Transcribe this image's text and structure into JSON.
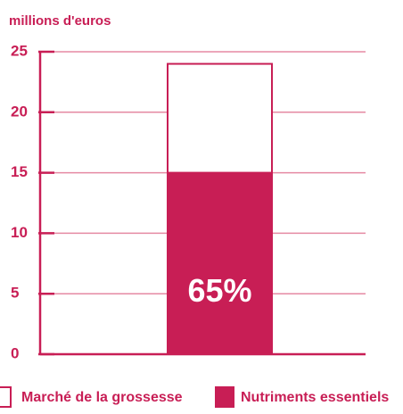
{
  "chart_data": {
    "type": "stacked_bar",
    "y_label": "millions d'euros",
    "categories": [
      null
    ],
    "series": [
      {
        "name": "Nutriments essentiels",
        "color": "#c81e55",
        "values": [
          15
        ]
      },
      {
        "name": "Marché de la grossesse",
        "color": "#ffffff",
        "values": [
          9
        ]
      }
    ],
    "annotation": "65%",
    "ylim": [
      0,
      25
    ],
    "yticks": [
      0,
      5,
      10,
      15,
      20,
      25
    ],
    "grid": true
  }
}
